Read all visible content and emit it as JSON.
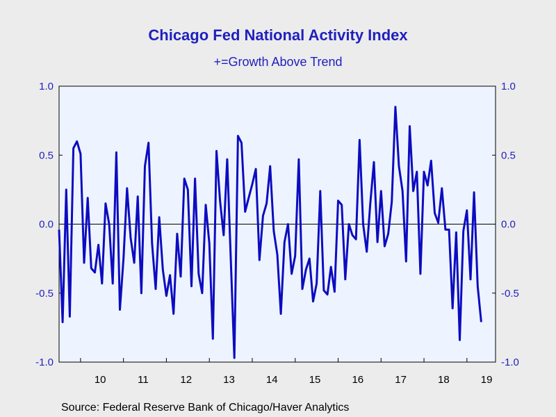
{
  "colors": {
    "line": "#0c0cc0",
    "text": "#1f1fbf",
    "plot_bg": "#eef4ff",
    "page_bg": "#ececec"
  },
  "source": "Source:  Federal Reserve Bank of Chicago/Haver Analytics",
  "chart_data": {
    "type": "line",
    "title": "Chicago Fed National Activity Index",
    "subtitle": "+=Growth Above Trend",
    "xlabel": "",
    "ylabel": "",
    "ylim": [
      -1.0,
      1.0
    ],
    "yticks": [
      "1.0",
      "0.5",
      "0.0",
      "-0.5",
      "-1.0"
    ],
    "ytick_values": [
      1.0,
      0.5,
      0.0,
      -0.5,
      -1.0
    ],
    "xticks": [
      "10",
      "11",
      "12",
      "13",
      "14",
      "15",
      "16",
      "17",
      "18",
      "19"
    ],
    "x_start": "2009-07",
    "x_end": "2019-09",
    "grid": false,
    "zero_line": true,
    "legend": "none",
    "series": [
      {
        "values": [
          -0.04,
          -0.71,
          0.25,
          -0.67,
          0.55,
          0.6,
          0.51,
          -0.28,
          0.19,
          -0.32,
          -0.35,
          -0.15,
          -0.43,
          0.15,
          0.0,
          -0.43,
          0.52,
          -0.62,
          -0.25,
          0.26,
          -0.1,
          -0.28,
          0.2,
          -0.5,
          0.42,
          0.59,
          -0.14,
          -0.47,
          0.05,
          -0.33,
          -0.52,
          -0.37,
          -0.65,
          -0.07,
          -0.38,
          0.33,
          0.25,
          -0.45,
          0.33,
          -0.36,
          -0.5,
          0.14,
          -0.14,
          -0.83,
          0.53,
          0.17,
          -0.08,
          0.47,
          -0.26,
          -0.97,
          0.64,
          0.59,
          0.09,
          0.19,
          0.29,
          0.4,
          -0.26,
          0.06,
          0.15,
          0.42,
          -0.05,
          -0.22,
          -0.65,
          -0.13,
          0.0,
          -0.36,
          -0.23,
          0.47,
          -0.47,
          -0.33,
          -0.25,
          -0.56,
          -0.43,
          0.24,
          -0.48,
          -0.51,
          -0.31,
          -0.49,
          0.17,
          0.14,
          -0.4,
          0.0,
          -0.08,
          -0.11,
          0.61,
          0.0,
          -0.2,
          0.15,
          0.45,
          -0.13,
          0.24,
          -0.16,
          -0.07,
          0.16,
          0.85,
          0.42,
          0.24,
          -0.27,
          0.71,
          0.24,
          0.38,
          -0.36,
          0.38,
          0.28,
          0.46,
          0.08,
          0.01,
          0.26,
          -0.04,
          -0.04,
          -0.61,
          -0.06,
          -0.84,
          -0.05,
          0.1,
          -0.4,
          0.23,
          -0.45,
          -0.71
        ]
      }
    ]
  }
}
